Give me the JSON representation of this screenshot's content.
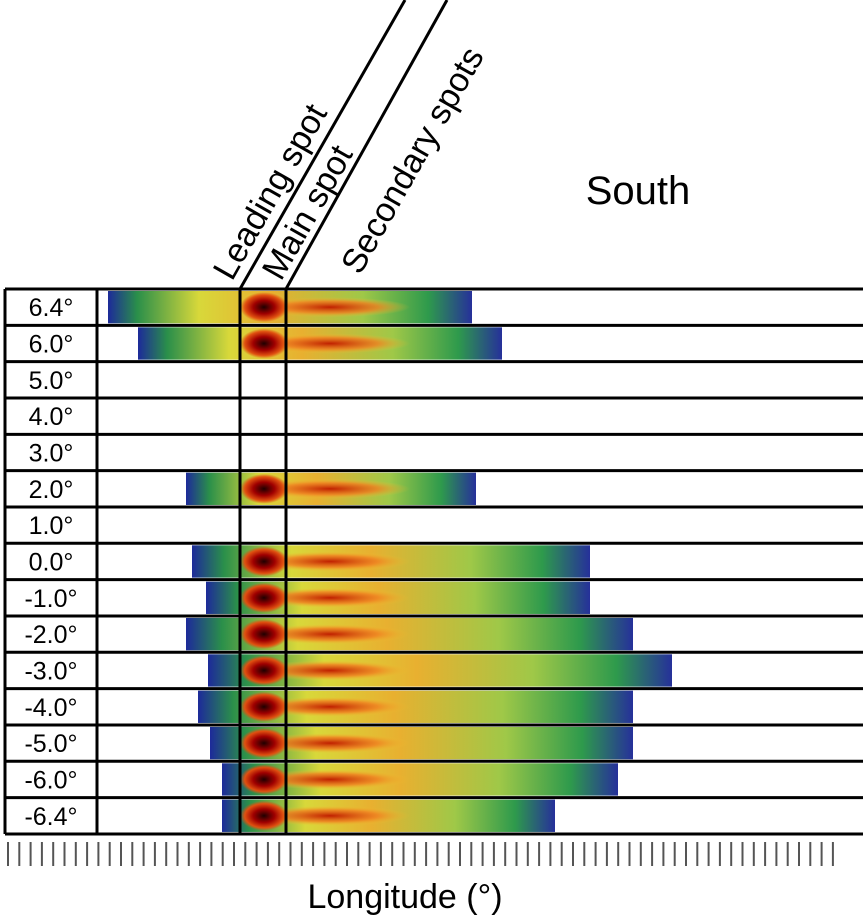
{
  "title": "South",
  "annotations": [
    "Leading spot",
    "Main spot",
    "Secondary spots"
  ],
  "rows": [
    "6.4°",
    "6.0°",
    "5.0°",
    "4.0°",
    "3.0°",
    "2.0°",
    "1.0°",
    "0.0°",
    "-1.0°",
    "-2.0°",
    "-3.0°",
    "-4.0°",
    "-5.0°",
    "-6.0°",
    "-6.4°"
  ],
  "x_axis_label": "Longitude (°)"
}
